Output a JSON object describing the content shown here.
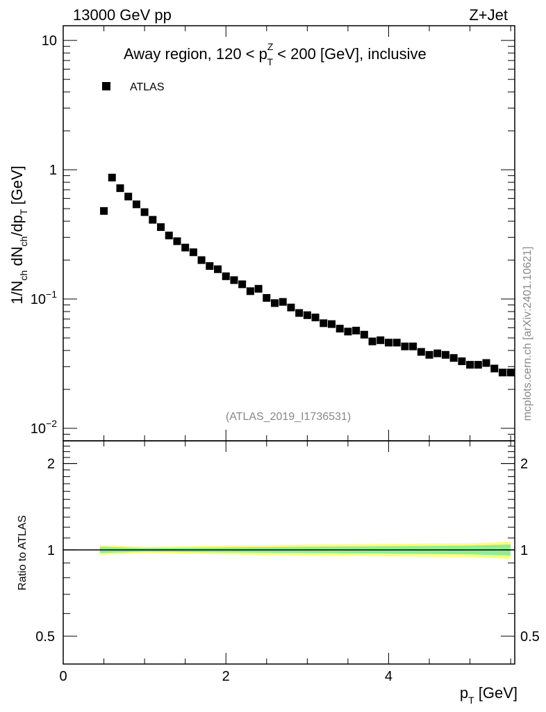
{
  "header": {
    "left": "13000 GeV pp",
    "right": "Z+Jet"
  },
  "side_label": "mcplots.cern.ch [arXiv:2401.10621]",
  "chart_data": [
    {
      "type": "scatter",
      "title_parts": {
        "prefix": "Away region, 120 < p",
        "sup": "Z",
        "sub": "T",
        "suffix": " < 200 [GeV], inclusive"
      },
      "ylabel_parts": [
        {
          "t": "1/N",
          "s": "n"
        },
        {
          "t": "ch",
          "s": "sub"
        },
        {
          "t": " dN",
          "s": "n"
        },
        {
          "t": "ch",
          "s": "sub"
        },
        {
          "t": "/dp",
          "s": "n"
        },
        {
          "t": "T",
          "s": "sub"
        },
        {
          "t": " [GeV]",
          "s": "n"
        }
      ],
      "yscale": "log",
      "ylim": [
        0.008,
        13
      ],
      "xlim": [
        0,
        5.55
      ],
      "y_ticks": [
        {
          "v": 10,
          "base": "10",
          "exp": ""
        },
        {
          "v": 1,
          "base": "1",
          "exp": ""
        },
        {
          "v": 0.1,
          "base": "10",
          "exp": "−1"
        },
        {
          "v": 0.01,
          "base": "10",
          "exp": "−2"
        }
      ],
      "legend": [
        {
          "name": "ATLAS",
          "marker": "square",
          "color": "#000000"
        }
      ],
      "legend_position": "top-left",
      "watermark": "(ATLAS_2019_I1736531)",
      "series": [
        {
          "name": "ATLAS",
          "x": [
            0.5,
            0.6,
            0.7,
            0.8,
            0.9,
            1.0,
            1.1,
            1.2,
            1.3,
            1.4,
            1.5,
            1.6,
            1.7,
            1.8,
            1.9,
            2.0,
            2.1,
            2.2,
            2.3,
            2.4,
            2.5,
            2.6,
            2.7,
            2.8,
            2.9,
            3.0,
            3.1,
            3.2,
            3.3,
            3.4,
            3.5,
            3.6,
            3.7,
            3.8,
            3.9,
            4.0,
            4.1,
            4.2,
            4.3,
            4.4,
            4.5,
            4.6,
            4.7,
            4.8,
            4.9,
            5.0,
            5.1,
            5.2,
            5.3,
            5.4,
            5.5
          ],
          "y": [
            0.48,
            0.87,
            0.72,
            0.62,
            0.54,
            0.47,
            0.41,
            0.36,
            0.31,
            0.28,
            0.25,
            0.23,
            0.2,
            0.18,
            0.17,
            0.15,
            0.14,
            0.13,
            0.115,
            0.12,
            0.102,
            0.093,
            0.095,
            0.086,
            0.078,
            0.075,
            0.072,
            0.065,
            0.064,
            0.059,
            0.056,
            0.057,
            0.053,
            0.047,
            0.048,
            0.046,
            0.046,
            0.043,
            0.043,
            0.039,
            0.037,
            0.038,
            0.037,
            0.035,
            0.033,
            0.031,
            0.031,
            0.032,
            0.029,
            0.027,
            0.027
          ]
        }
      ]
    },
    {
      "type": "area",
      "ylabel": "Ratio to ATLAS",
      "xlabel_parts": {
        "base": "p",
        "sub": "T",
        "suffix": " [GeV]"
      },
      "yscale": "log",
      "ylim": [
        0.4,
        2.4
      ],
      "xlim": [
        0,
        5.55
      ],
      "x_ticks": [
        0,
        2,
        4
      ],
      "y_ticks": [
        0.5,
        1,
        2
      ],
      "reference_line": 1,
      "band_x": [
        0.45,
        1.0,
        2.0,
        3.0,
        4.0,
        5.0,
        5.5
      ],
      "inner_band": {
        "color": "#90ee90",
        "low": [
          0.975,
          0.985,
          0.98,
          0.975,
          0.97,
          0.965,
          0.955
        ],
        "high": [
          1.025,
          1.015,
          1.02,
          1.025,
          1.03,
          1.035,
          1.045
        ]
      },
      "outer_band": {
        "color": "#ffff80",
        "low": [
          0.96,
          0.975,
          0.965,
          0.955,
          0.95,
          0.945,
          0.93
        ],
        "high": [
          1.04,
          1.025,
          1.035,
          1.045,
          1.05,
          1.055,
          1.07
        ]
      }
    }
  ]
}
